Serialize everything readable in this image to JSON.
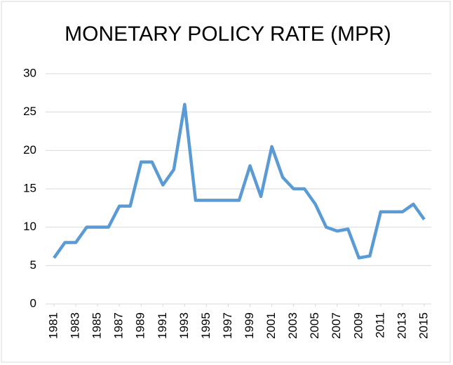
{
  "chart_data": {
    "type": "line",
    "title": "MONETARY POLICY RATE (MPR)",
    "x": [
      1981,
      1982,
      1983,
      1984,
      1985,
      1986,
      1987,
      1988,
      1989,
      1990,
      1991,
      1992,
      1993,
      1994,
      1995,
      1996,
      1997,
      1998,
      1999,
      2000,
      2001,
      2002,
      2003,
      2004,
      2005,
      2006,
      2007,
      2008,
      2009,
      2010,
      2011,
      2012,
      2013,
      2014,
      2015
    ],
    "series": [
      {
        "name": "MPR",
        "color": "#5b9bd5",
        "values": [
          6,
          8,
          8,
          10,
          10,
          10,
          12.75,
          12.75,
          18.5,
          18.5,
          15.5,
          17.5,
          26,
          13.5,
          13.5,
          13.5,
          13.5,
          13.5,
          18,
          14,
          20.5,
          16.5,
          15,
          15,
          13,
          10,
          9.5,
          9.75,
          6,
          6.25,
          12,
          12,
          12,
          13,
          11
        ]
      }
    ],
    "xlim": [
      1981,
      2015
    ],
    "xticks": [
      1981,
      1983,
      1985,
      1987,
      1989,
      1991,
      1993,
      1995,
      1997,
      1999,
      2001,
      2003,
      2005,
      2007,
      2009,
      2011,
      2013,
      2015
    ],
    "ylim": [
      0,
      30
    ],
    "yticks": [
      0,
      5,
      10,
      15,
      20,
      25,
      30
    ],
    "grid": true
  }
}
